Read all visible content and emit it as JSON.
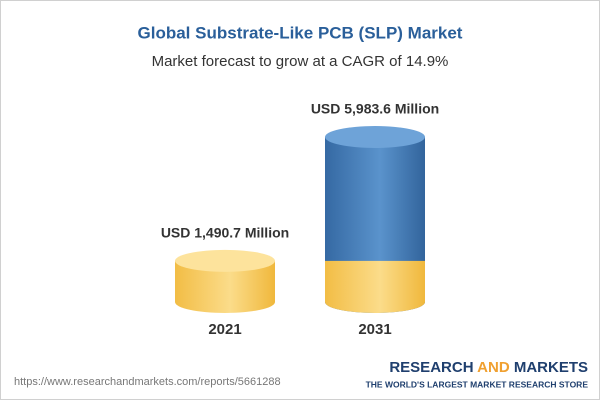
{
  "chart_data": {
    "type": "cylinder",
    "title": "Global Substrate-Like PCB (SLP) Market",
    "subtitle": "Market forecast to grow at a CAGR of 14.9%",
    "categories": [
      "2021",
      "2031"
    ],
    "values": [
      1490.7,
      5983.6
    ],
    "value_labels": [
      "USD 1,490.7 Million",
      "USD 5,983.6 Million"
    ],
    "colors": [
      "#f5c34f",
      "#3d76b3"
    ],
    "source": "https://www.researchandmarkets.com/reports/5661288",
    "brand": [
      "RESEARCH",
      "AND",
      "MARKETS"
    ],
    "brand_tagline": "THE WORLD'S LARGEST MARKET RESEARCH STORE"
  }
}
